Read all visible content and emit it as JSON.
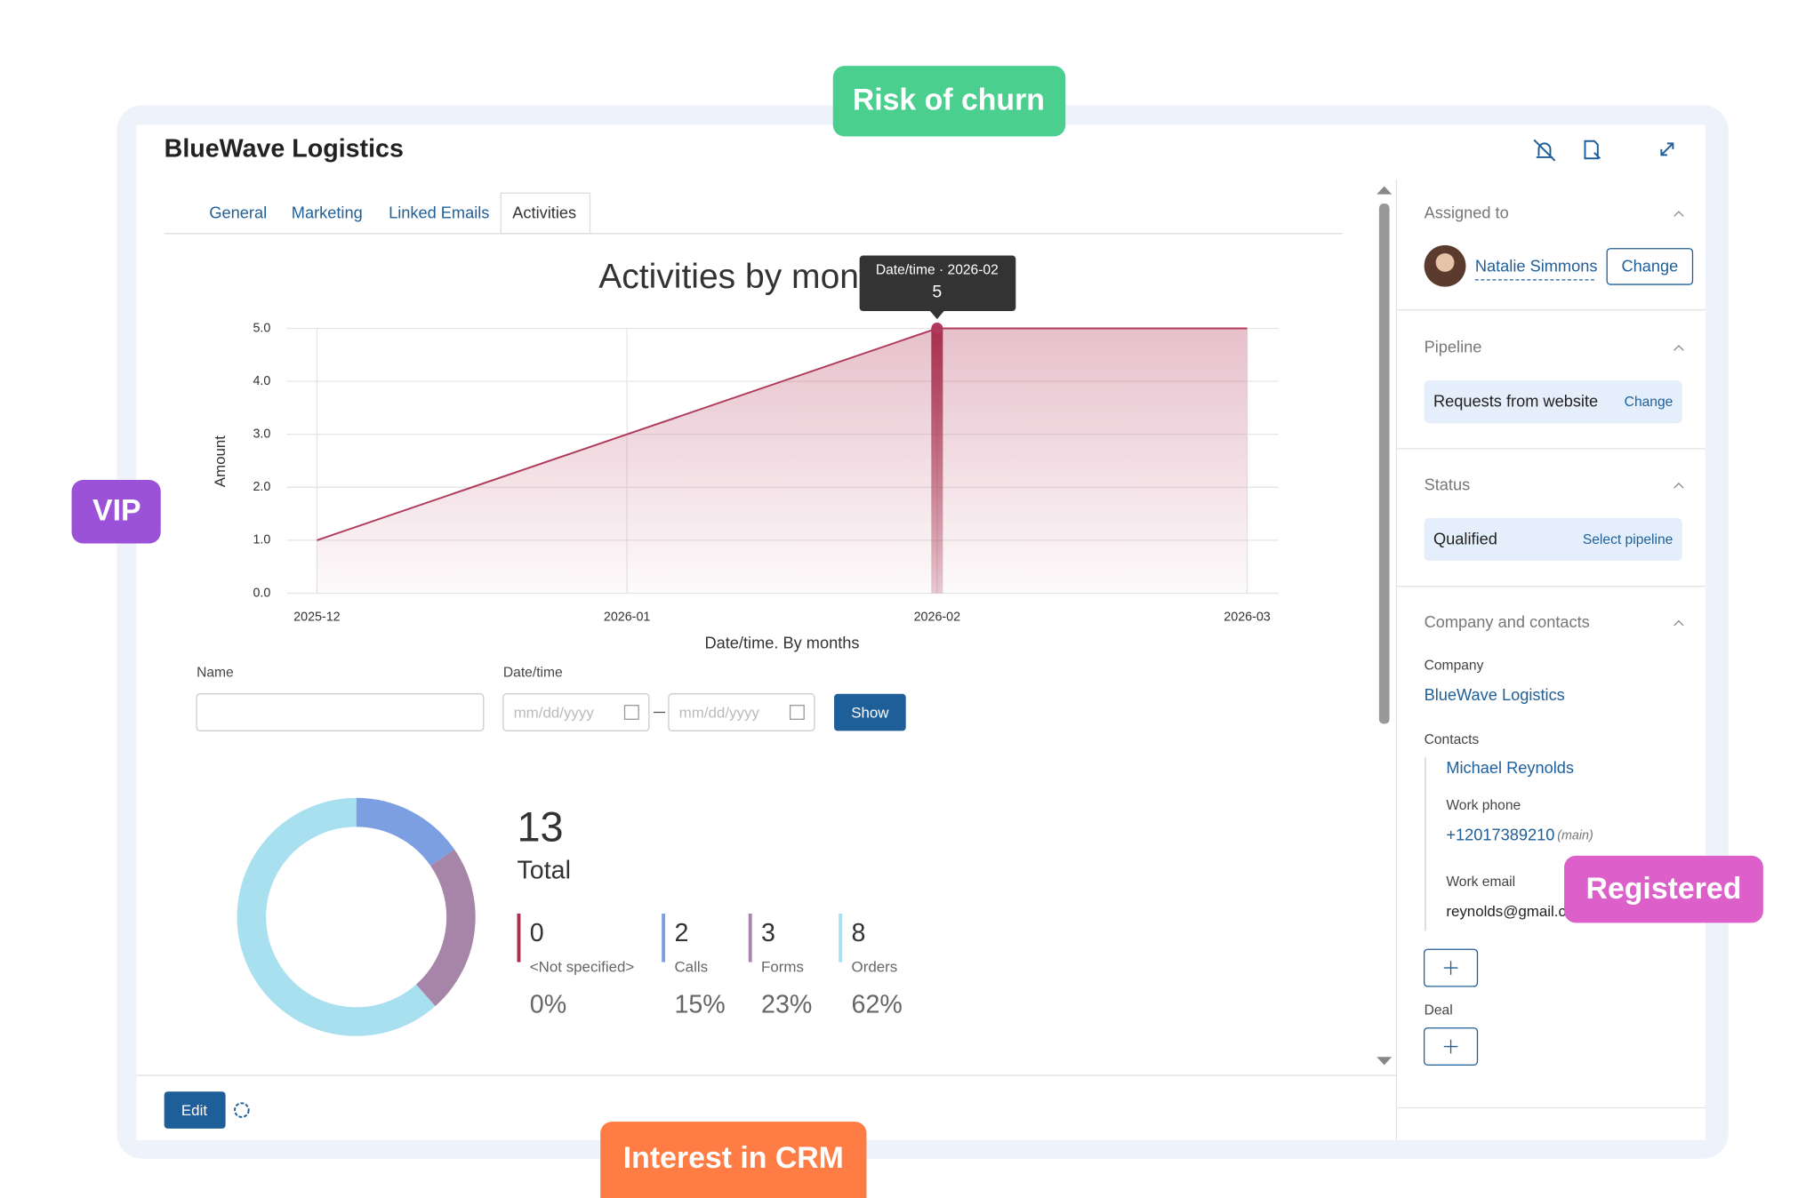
{
  "badges": {
    "risk": "Risk of churn",
    "vip": "VIP",
    "registered": "Registered",
    "interest": "Interest in CRM"
  },
  "header": {
    "title": "BlueWave Logistics"
  },
  "tabs": [
    "General",
    "Marketing",
    "Linked Emails",
    "Activities"
  ],
  "chart_data": [
    {
      "type": "area",
      "title": "Activities by months",
      "x_label": "Date/time. By months",
      "y_label": "Amount",
      "categories": [
        "2025-12",
        "2026-01",
        "2026-02",
        "2026-03"
      ],
      "values": [
        1,
        3,
        5,
        5
      ],
      "color": "#b03a5b",
      "ylim": [
        0,
        5
      ],
      "yticks": [
        {
          "value": 0,
          "label": "0.0"
        },
        {
          "value": 1,
          "label": "1.0"
        },
        {
          "value": 2,
          "label": "2.0"
        },
        {
          "value": 3,
          "label": "3.0"
        },
        {
          "value": 4,
          "label": "4.0"
        },
        {
          "value": 5,
          "label": "5.0"
        }
      ],
      "grid": true,
      "tooltip_label": "Date/time · 2026-02"
    },
    {
      "type": "donut",
      "total": 13,
      "total_label": "Total",
      "categories": [
        "<Not specified>",
        "Calls",
        "Forms",
        "Orders"
      ],
      "values": [
        0,
        2,
        3,
        8
      ],
      "value_labels": [
        "0%",
        "15%",
        "23%",
        "62%"
      ],
      "colors": [
        "#a8304f",
        "#7b9fe0",
        "#a685a8",
        "#a8e0f0"
      ]
    }
  ],
  "filters": {
    "name_label": "Name",
    "date_label": "Date/time",
    "placeholder": "mm/dd/yyyy",
    "show": "Show"
  },
  "footer": {
    "edit": "Edit"
  },
  "sidebar": {
    "assigned_label": "Assigned to",
    "assignee": "Natalie Simmons",
    "change": "Change",
    "pipeline_label": "Pipeline",
    "pipeline": "Requests from website",
    "pipeline_change": "Change",
    "status_label": "Status",
    "status": "Qualified",
    "select_pipeline": "Select pipeline",
    "company_contacts_label": "Company and contacts",
    "company_label": "Company",
    "company": "BlueWave Logistics",
    "contacts_label": "Contacts",
    "contact": "Michael Reynolds",
    "work_phone_label": "Work phone",
    "phone": "+12017389210",
    "phone_note": "(main)",
    "work_email_label": "Work email",
    "email": "reynolds@gmail.c",
    "deal_label": "Deal"
  }
}
